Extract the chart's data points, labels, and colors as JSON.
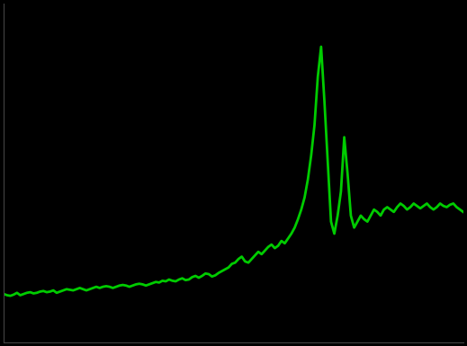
{
  "line_color": "#00cc00",
  "background_color": "#000000",
  "spine_color": "#444444",
  "linewidth": 2.0,
  "y_values": [
    24000,
    23900,
    23850,
    23950,
    24100,
    23900,
    24000,
    24100,
    24150,
    24050,
    24100,
    24200,
    24250,
    24150,
    24200,
    24300,
    24100,
    24200,
    24300,
    24400,
    24350,
    24300,
    24400,
    24500,
    24400,
    24300,
    24400,
    24500,
    24600,
    24500,
    24600,
    24650,
    24600,
    24500,
    24600,
    24700,
    24750,
    24700,
    24600,
    24700,
    24800,
    24850,
    24800,
    24700,
    24800,
    24900,
    25000,
    24950,
    25100,
    25050,
    25200,
    25100,
    25050,
    25200,
    25300,
    25150,
    25200,
    25400,
    25500,
    25350,
    25500,
    25700,
    25650,
    25450,
    25550,
    25750,
    25900,
    26050,
    26200,
    26500,
    26600,
    26900,
    27100,
    26700,
    26600,
    26900,
    27200,
    27500,
    27300,
    27600,
    27900,
    28100,
    27800,
    28000,
    28400,
    28200,
    28600,
    29000,
    29500,
    30200,
    31000,
    32000,
    33500,
    35500,
    38000,
    42000,
    44500,
    40000,
    35000,
    30000,
    29000,
    30500,
    32500,
    37000,
    34000,
    30500,
    29500,
    30000,
    30500,
    30200,
    30000,
    30500,
    31000,
    30800,
    30500,
    31000,
    31200,
    31000,
    30800,
    31200,
    31500,
    31300,
    31000,
    31200,
    31500,
    31300,
    31100,
    31300,
    31500,
    31200,
    31000,
    31200,
    31500,
    31300,
    31200,
    31400,
    31500,
    31200,
    31000,
    30800
  ],
  "ylim_min": 20000,
  "figsize": [
    5.19,
    3.85
  ],
  "dpi": 100
}
